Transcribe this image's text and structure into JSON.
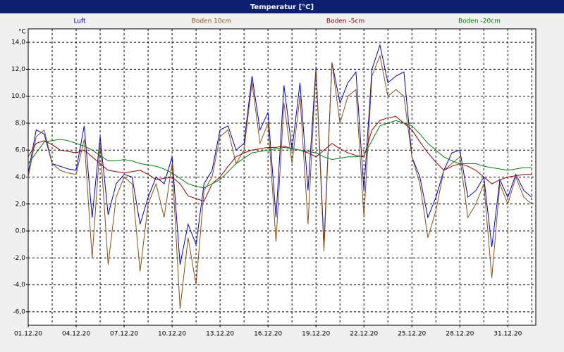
{
  "chart_data": {
    "type": "line",
    "title": "Temperatur [°C]",
    "y_unit": "°C",
    "x": [
      1,
      1.5,
      2,
      2.5,
      3,
      3.5,
      4,
      4.5,
      5,
      5.5,
      6,
      6.5,
      7,
      7.5,
      8,
      8.5,
      9,
      9.5,
      10,
      10.5,
      11,
      11.5,
      12,
      12.5,
      13,
      13.5,
      14,
      14.5,
      15,
      15.5,
      16,
      16.5,
      17,
      17.5,
      18,
      18.5,
      19,
      19.5,
      20,
      20.5,
      21,
      21.5,
      22,
      22.5,
      23,
      23.5,
      24,
      24.5,
      25,
      25.5,
      26,
      26.5,
      27,
      27.5,
      28,
      28.5,
      29,
      29.5,
      30,
      30.5,
      31,
      31.5,
      32,
      32.5
    ],
    "series": [
      {
        "name": "Luft",
        "color": "#0000c8",
        "values": [
          4.3,
          7.5,
          7.2,
          5.0,
          4.8,
          4.6,
          4.5,
          7.8,
          1.0,
          7.0,
          1.2,
          3.5,
          4.2,
          4.0,
          0.5,
          2.5,
          4.0,
          3.5,
          5.5,
          -2.5,
          0.5,
          -1.0,
          3.5,
          4.5,
          7.5,
          7.8,
          6.0,
          6.5,
          11.5,
          7.5,
          8.8,
          1.0,
          10.8,
          6.0,
          11.0,
          3.0,
          12.2,
          -1.0,
          12.5,
          9.5,
          11.0,
          11.8,
          3.0,
          12.0,
          13.8,
          11.0,
          11.5,
          11.8,
          5.5,
          4.0,
          1.0,
          2.5,
          4.5,
          5.8,
          6.0,
          2.5,
          3.0,
          4.0,
          -1.2,
          3.8,
          2.5,
          4.2,
          3.0,
          2.5
        ]
      },
      {
        "name": "Boden 10cm",
        "color": "#8c5014",
        "values": [
          4.0,
          7.0,
          7.5,
          5.0,
          4.5,
          4.3,
          4.2,
          6.8,
          -2.0,
          6.5,
          -2.5,
          2.5,
          4.0,
          3.5,
          -3.0,
          2.0,
          3.5,
          1.0,
          5.0,
          -5.8,
          -0.5,
          -4.0,
          3.0,
          4.0,
          7.0,
          7.5,
          5.0,
          6.0,
          11.0,
          6.5,
          8.0,
          -0.8,
          9.5,
          5.0,
          10.0,
          0.5,
          12.0,
          -1.5,
          12.5,
          8.0,
          10.0,
          10.5,
          1.0,
          11.5,
          13.0,
          10.0,
          10.5,
          10.0,
          5.5,
          3.5,
          -0.5,
          1.5,
          4.5,
          5.0,
          5.5,
          1.0,
          2.0,
          3.5,
          -3.5,
          3.5,
          2.0,
          4.0,
          2.5,
          2.0
        ]
      },
      {
        "name": "Boden -5cm",
        "color": "#960000",
        "values": [
          5.5,
          6.5,
          6.7,
          6.4,
          6.0,
          5.9,
          5.8,
          6.0,
          5.5,
          5.0,
          4.5,
          4.4,
          4.3,
          4.4,
          4.5,
          4.2,
          3.8,
          3.9,
          4.0,
          3.5,
          2.6,
          2.4,
          2.2,
          3.5,
          4.0,
          4.8,
          5.5,
          5.8,
          6.0,
          6.1,
          6.2,
          6.2,
          6.3,
          6.1,
          6.0,
          5.8,
          5.5,
          6.0,
          6.5,
          6.1,
          5.8,
          5.6,
          5.5,
          7.5,
          8.2,
          8.4,
          8.5,
          8.0,
          7.5,
          6.6,
          5.8,
          5.1,
          4.5,
          4.8,
          5.0,
          4.8,
          4.5,
          4.0,
          3.5,
          3.8,
          4.0,
          4.1,
          4.2,
          4.2
        ]
      },
      {
        "name": "Boden -20cm",
        "color": "#008200",
        "values": [
          5.0,
          5.8,
          6.6,
          6.7,
          6.8,
          6.7,
          6.5,
          6.3,
          6.0,
          5.6,
          5.2,
          5.2,
          5.3,
          5.2,
          5.0,
          4.9,
          4.8,
          4.6,
          4.3,
          3.9,
          3.5,
          3.3,
          3.2,
          3.5,
          3.8,
          4.4,
          5.0,
          5.4,
          5.8,
          5.9,
          6.0,
          6.1,
          6.2,
          6.1,
          6.0,
          5.9,
          5.8,
          5.5,
          5.3,
          5.4,
          5.5,
          5.5,
          5.6,
          6.7,
          7.8,
          8.0,
          8.2,
          8.0,
          7.8,
          7.2,
          6.5,
          6.0,
          5.5,
          5.2,
          5.0,
          5.0,
          5.0,
          4.8,
          4.7,
          4.6,
          4.5,
          4.6,
          4.7,
          4.7
        ]
      }
    ],
    "xlim": [
      1,
      32.75
    ],
    "xticks": [
      {
        "value": 1,
        "label": "01.12.20"
      },
      {
        "value": 4,
        "label": "04.12.20"
      },
      {
        "value": 7,
        "label": "07.12.20"
      },
      {
        "value": 10,
        "label": "10.12.20"
      },
      {
        "value": 13,
        "label": "13.12.20"
      },
      {
        "value": 16,
        "label": "16.12.20"
      },
      {
        "value": 19,
        "label": "19.12.20"
      },
      {
        "value": 22,
        "label": "22.12.20"
      },
      {
        "value": 25,
        "label": "25.12.20"
      },
      {
        "value": 28,
        "label": "28.12.20"
      },
      {
        "value": 31,
        "label": "31.12.20"
      }
    ],
    "xgrid_minor": [
      2.5,
      5.5,
      8.5,
      11.5,
      14.5,
      17.5,
      20.5,
      23.5,
      26.5,
      29.5,
      32.5
    ],
    "ylim": [
      -7,
      15
    ],
    "yticks": [
      {
        "value": -6,
        "label": "-6,0"
      },
      {
        "value": -4,
        "label": "-4,0"
      },
      {
        "value": -2,
        "label": "-2,0"
      },
      {
        "value": 0,
        "label": "0,0"
      },
      {
        "value": 2,
        "label": "2,0"
      },
      {
        "value": 4,
        "label": "4,0"
      },
      {
        "value": 6,
        "label": "6,0"
      },
      {
        "value": 8,
        "label": "8,0"
      },
      {
        "value": 10,
        "label": "10,0"
      },
      {
        "value": 12,
        "label": "12,0"
      },
      {
        "value": 14,
        "label": "14,0"
      }
    ],
    "grid": true
  }
}
